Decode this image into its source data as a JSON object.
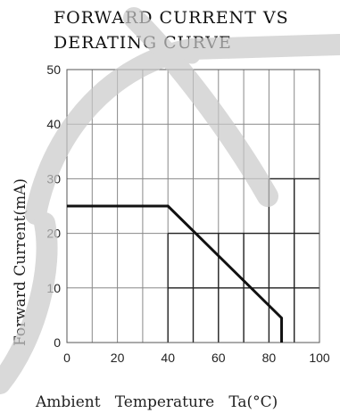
{
  "chart_data": {
    "type": "line",
    "title_line1": "FORWARD CURRENT VS",
    "title_line2": "DERATING CURVE",
    "xlabel": "Ambient   Temperature   Ta(°C)",
    "ylabel": "Forward   Current(mA)",
    "xlim": [
      0,
      100
    ],
    "ylim": [
      0,
      50
    ],
    "x_ticks": [
      "0",
      "20",
      "40",
      "60",
      "80",
      "100"
    ],
    "y_ticks": [
      "0",
      "10",
      "20",
      "30",
      "40",
      "50"
    ],
    "grid": true,
    "series": [
      {
        "x": [
          0,
          40,
          85,
          85
        ],
        "y": [
          25,
          25,
          4.5,
          0
        ]
      }
    ]
  },
  "watermark": {
    "color": "#c9c9c9"
  }
}
